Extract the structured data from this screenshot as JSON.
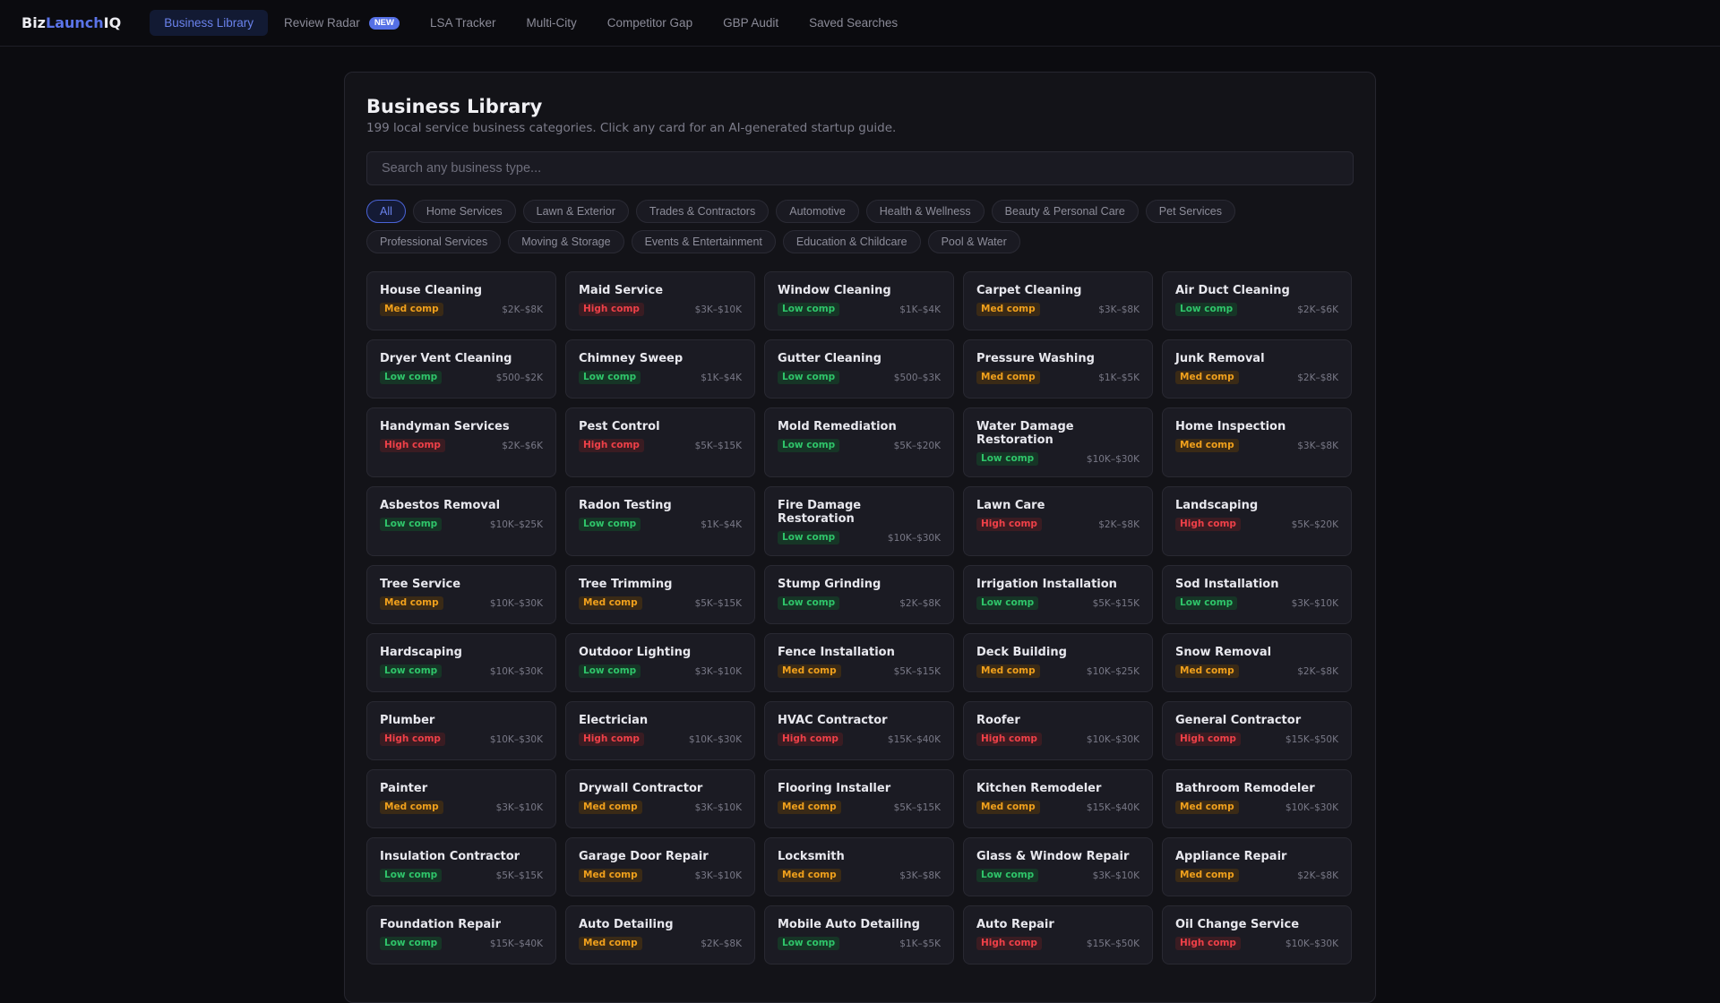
{
  "logo": {
    "part1": "Biz",
    "part2": "Launch",
    "part3": "IQ"
  },
  "nav": {
    "items": [
      {
        "label": "Business Library",
        "active": true
      },
      {
        "label": "Review Radar",
        "badge": "NEW"
      },
      {
        "label": "LSA Tracker"
      },
      {
        "label": "Multi-City"
      },
      {
        "label": "Competitor Gap"
      },
      {
        "label": "GBP Audit"
      },
      {
        "label": "Saved Searches"
      }
    ]
  },
  "page": {
    "title": "Business Library",
    "subtitle": "199 local service business categories. Click any card for an AI-generated startup guide.",
    "search_placeholder": "Search any business type...",
    "search_value": ""
  },
  "filters": [
    {
      "label": "All",
      "active": true
    },
    {
      "label": "Home Services"
    },
    {
      "label": "Lawn & Exterior"
    },
    {
      "label": "Trades & Contractors"
    },
    {
      "label": "Automotive"
    },
    {
      "label": "Health & Wellness"
    },
    {
      "label": "Beauty & Personal Care"
    },
    {
      "label": "Pet Services"
    },
    {
      "label": "Professional Services"
    },
    {
      "label": "Moving & Storage"
    },
    {
      "label": "Events & Entertainment"
    },
    {
      "label": "Education & Childcare"
    },
    {
      "label": "Pool & Water"
    }
  ],
  "competition_colors": {
    "low": "#2fc56a",
    "med": "#f0a01c",
    "high": "#ee4048"
  },
  "cards": [
    {
      "name": "House Cleaning",
      "comp": "Med comp",
      "level": "med",
      "price": "$2K–$8K"
    },
    {
      "name": "Maid Service",
      "comp": "High comp",
      "level": "high",
      "price": "$3K–$10K"
    },
    {
      "name": "Window Cleaning",
      "comp": "Low comp",
      "level": "low",
      "price": "$1K–$4K"
    },
    {
      "name": "Carpet Cleaning",
      "comp": "Med comp",
      "level": "med",
      "price": "$3K–$8K"
    },
    {
      "name": "Air Duct Cleaning",
      "comp": "Low comp",
      "level": "low",
      "price": "$2K–$6K"
    },
    {
      "name": "Dryer Vent Cleaning",
      "comp": "Low comp",
      "level": "low",
      "price": "$500–$2K"
    },
    {
      "name": "Chimney Sweep",
      "comp": "Low comp",
      "level": "low",
      "price": "$1K–$4K"
    },
    {
      "name": "Gutter Cleaning",
      "comp": "Low comp",
      "level": "low",
      "price": "$500–$3K"
    },
    {
      "name": "Pressure Washing",
      "comp": "Med comp",
      "level": "med",
      "price": "$1K–$5K"
    },
    {
      "name": "Junk Removal",
      "comp": "Med comp",
      "level": "med",
      "price": "$2K–$8K"
    },
    {
      "name": "Handyman Services",
      "comp": "High comp",
      "level": "high",
      "price": "$2K–$6K"
    },
    {
      "name": "Pest Control",
      "comp": "High comp",
      "level": "high",
      "price": "$5K–$15K"
    },
    {
      "name": "Mold Remediation",
      "comp": "Low comp",
      "level": "low",
      "price": "$5K–$20K"
    },
    {
      "name": "Water Damage Restoration",
      "comp": "Low comp",
      "level": "low",
      "price": "$10K–$30K"
    },
    {
      "name": "Home Inspection",
      "comp": "Med comp",
      "level": "med",
      "price": "$3K–$8K"
    },
    {
      "name": "Asbestos Removal",
      "comp": "Low comp",
      "level": "low",
      "price": "$10K–$25K"
    },
    {
      "name": "Radon Testing",
      "comp": "Low comp",
      "level": "low",
      "price": "$1K–$4K"
    },
    {
      "name": "Fire Damage Restoration",
      "comp": "Low comp",
      "level": "low",
      "price": "$10K–$30K"
    },
    {
      "name": "Lawn Care",
      "comp": "High comp",
      "level": "high",
      "price": "$2K–$8K"
    },
    {
      "name": "Landscaping",
      "comp": "High comp",
      "level": "high",
      "price": "$5K–$20K"
    },
    {
      "name": "Tree Service",
      "comp": "Med comp",
      "level": "med",
      "price": "$10K–$30K"
    },
    {
      "name": "Tree Trimming",
      "comp": "Med comp",
      "level": "med",
      "price": "$5K–$15K"
    },
    {
      "name": "Stump Grinding",
      "comp": "Low comp",
      "level": "low",
      "price": "$2K–$8K"
    },
    {
      "name": "Irrigation Installation",
      "comp": "Low comp",
      "level": "low",
      "price": "$5K–$15K"
    },
    {
      "name": "Sod Installation",
      "comp": "Low comp",
      "level": "low",
      "price": "$3K–$10K"
    },
    {
      "name": "Hardscaping",
      "comp": "Low comp",
      "level": "low",
      "price": "$10K–$30K"
    },
    {
      "name": "Outdoor Lighting",
      "comp": "Low comp",
      "level": "low",
      "price": "$3K–$10K"
    },
    {
      "name": "Fence Installation",
      "comp": "Med comp",
      "level": "med",
      "price": "$5K–$15K"
    },
    {
      "name": "Deck Building",
      "comp": "Med comp",
      "level": "med",
      "price": "$10K–$25K"
    },
    {
      "name": "Snow Removal",
      "comp": "Med comp",
      "level": "med",
      "price": "$2K–$8K"
    },
    {
      "name": "Plumber",
      "comp": "High comp",
      "level": "high",
      "price": "$10K–$30K"
    },
    {
      "name": "Electrician",
      "comp": "High comp",
      "level": "high",
      "price": "$10K–$30K"
    },
    {
      "name": "HVAC Contractor",
      "comp": "High comp",
      "level": "high",
      "price": "$15K–$40K"
    },
    {
      "name": "Roofer",
      "comp": "High comp",
      "level": "high",
      "price": "$10K–$30K"
    },
    {
      "name": "General Contractor",
      "comp": "High comp",
      "level": "high",
      "price": "$15K–$50K"
    },
    {
      "name": "Painter",
      "comp": "Med comp",
      "level": "med",
      "price": "$3K–$10K"
    },
    {
      "name": "Drywall Contractor",
      "comp": "Med comp",
      "level": "med",
      "price": "$3K–$10K"
    },
    {
      "name": "Flooring Installer",
      "comp": "Med comp",
      "level": "med",
      "price": "$5K–$15K"
    },
    {
      "name": "Kitchen Remodeler",
      "comp": "Med comp",
      "level": "med",
      "price": "$15K–$40K"
    },
    {
      "name": "Bathroom Remodeler",
      "comp": "Med comp",
      "level": "med",
      "price": "$10K–$30K"
    },
    {
      "name": "Insulation Contractor",
      "comp": "Low comp",
      "level": "low",
      "price": "$5K–$15K"
    },
    {
      "name": "Garage Door Repair",
      "comp": "Med comp",
      "level": "med",
      "price": "$3K–$10K"
    },
    {
      "name": "Locksmith",
      "comp": "Med comp",
      "level": "med",
      "price": "$3K–$8K"
    },
    {
      "name": "Glass & Window Repair",
      "comp": "Low comp",
      "level": "low",
      "price": "$3K–$10K"
    },
    {
      "name": "Appliance Repair",
      "comp": "Med comp",
      "level": "med",
      "price": "$2K–$8K"
    },
    {
      "name": "Foundation Repair",
      "comp": "Low comp",
      "level": "low",
      "price": "$15K–$40K"
    },
    {
      "name": "Auto Detailing",
      "comp": "Med comp",
      "level": "med",
      "price": "$2K–$8K"
    },
    {
      "name": "Mobile Auto Detailing",
      "comp": "Low comp",
      "level": "low",
      "price": "$1K–$5K"
    },
    {
      "name": "Auto Repair",
      "comp": "High comp",
      "level": "high",
      "price": "$15K–$50K"
    },
    {
      "name": "Oil Change Service",
      "comp": "High comp",
      "level": "high",
      "price": "$10K–$30K"
    }
  ]
}
